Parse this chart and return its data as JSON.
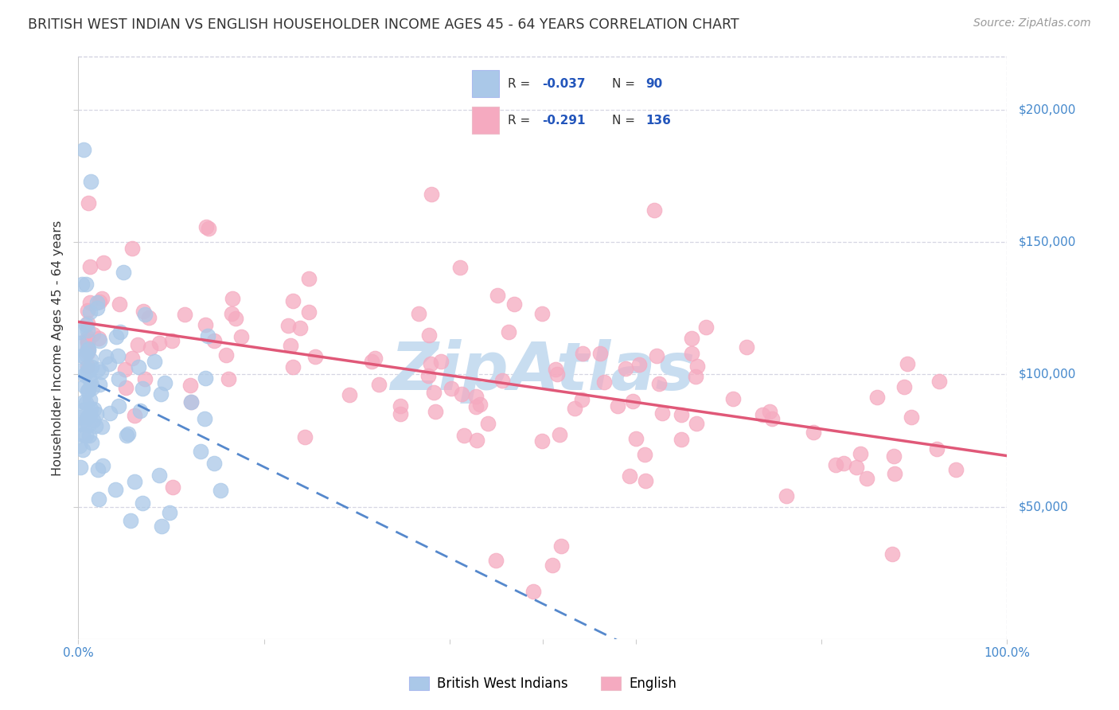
{
  "title": "BRITISH WEST INDIAN VS ENGLISH HOUSEHOLDER INCOME AGES 45 - 64 YEARS CORRELATION CHART",
  "source": "Source: ZipAtlas.com",
  "ylabel": "Householder Income Ages 45 - 64 years",
  "ytick_labels": [
    "$50,000",
    "$100,000",
    "$150,000",
    "$200,000"
  ],
  "ytick_values": [
    50000,
    100000,
    150000,
    200000
  ],
  "ylim": [
    0,
    220000
  ],
  "xlim": [
    0.0,
    1.0
  ],
  "bwi_R": -0.037,
  "bwi_N": 90,
  "eng_R": -0.291,
  "eng_N": 136,
  "bwi_color": "#aac8e8",
  "eng_color": "#f5aac0",
  "bwi_line_color": "#5588cc",
  "eng_line_color": "#e05878",
  "legend_label_bwi": "British West Indians",
  "legend_label_eng": "English",
  "watermark": "ZipAtlas",
  "watermark_color": "#c8ddf0",
  "grid_color": "#ccccdd",
  "axis_color": "#cccccc",
  "title_color": "#333333",
  "label_color": "#333333",
  "tick_color": "#4488cc",
  "source_color": "#999999"
}
